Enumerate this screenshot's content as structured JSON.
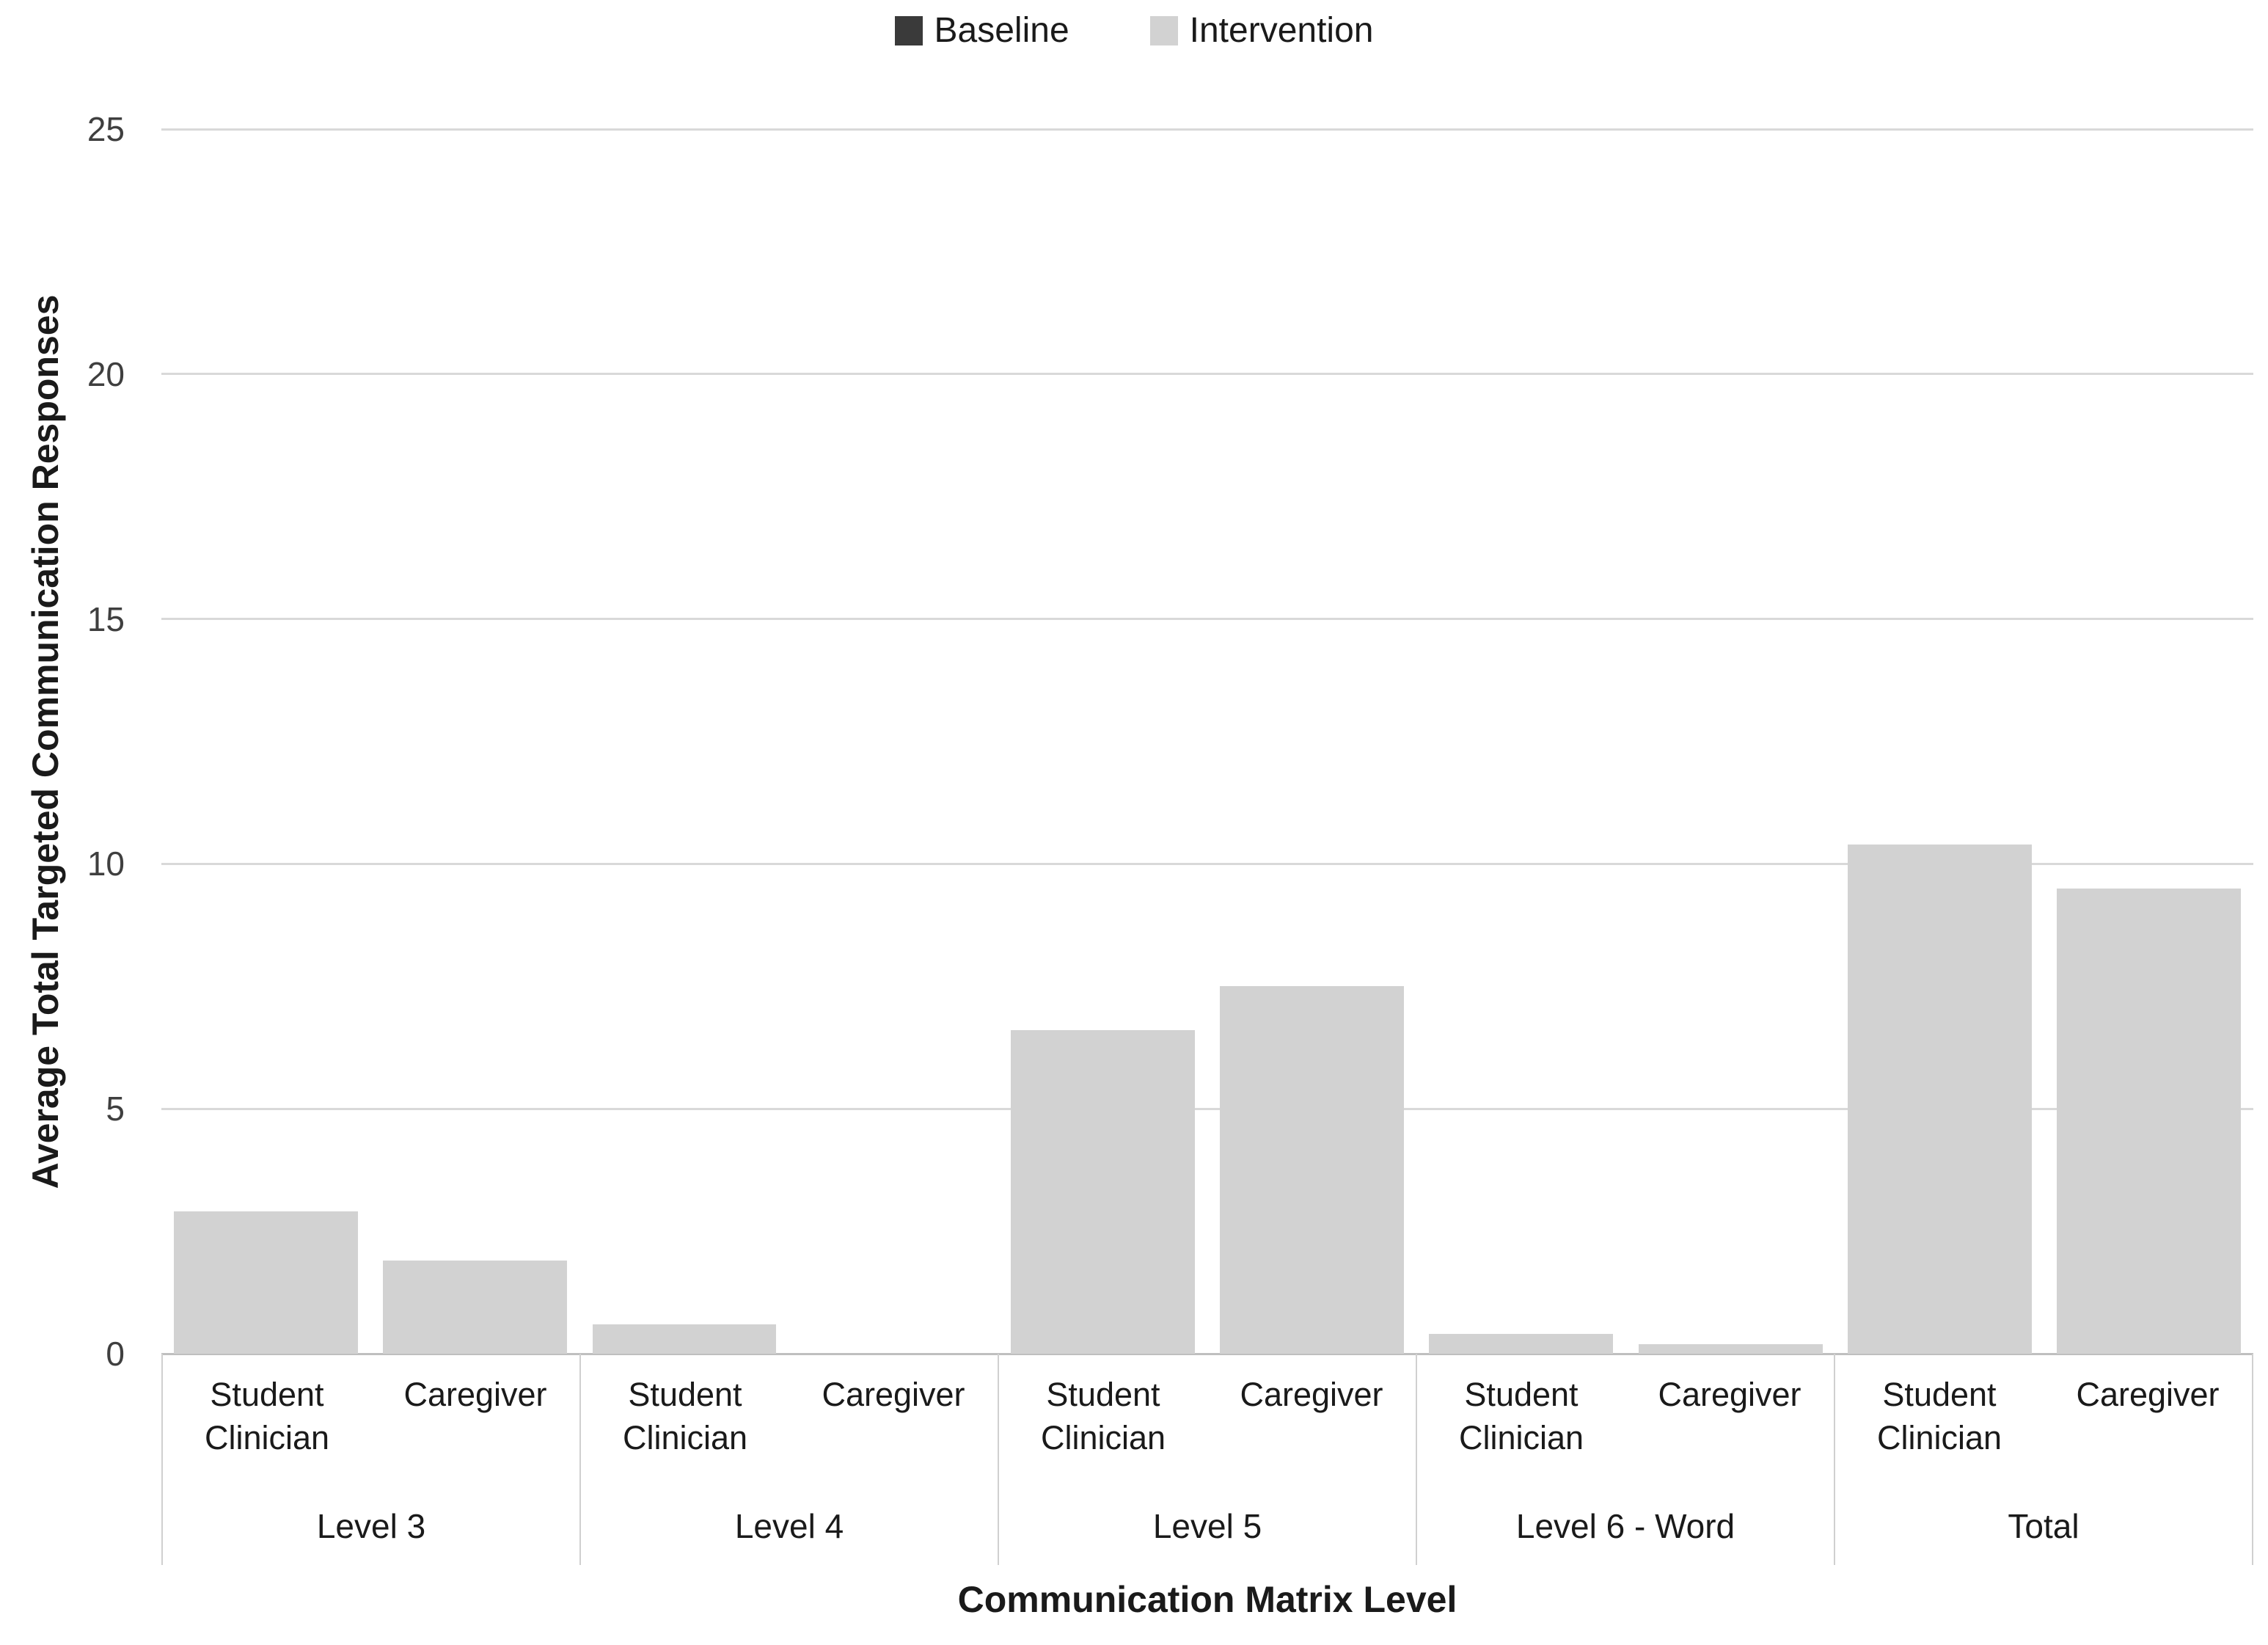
{
  "chart_data": {
    "type": "bar",
    "title": "",
    "xlabel": "Communication Matrix Level",
    "ylabel": "Average Total Targeted Communication Responses",
    "ylim": [
      0,
      25
    ],
    "yticks": [
      0,
      5,
      10,
      15,
      20,
      25
    ],
    "grid": "horizontal",
    "legend_position": "top-center",
    "group_labels": [
      "Level 3",
      "Level 4",
      "Level 5",
      "Level 6 - Word",
      "Total"
    ],
    "categories": [
      "Student Clinician",
      "Caregiver",
      "Student Clinician",
      "Caregiver",
      "Student Clinician",
      "Caregiver",
      "Student Clinician",
      "Caregiver",
      "Student Clinician",
      "Caregiver"
    ],
    "series": [
      {
        "name": "Baseline",
        "color": "#3a3a3a",
        "values": [
          0,
          0,
          0,
          0,
          0,
          0,
          0,
          0,
          0,
          0
        ]
      },
      {
        "name": "Intervention",
        "color": "#d2d2d2",
        "values": [
          2.9,
          1.9,
          0.6,
          0,
          6.6,
          7.5,
          0.4,
          0.2,
          10.4,
          9.5
        ]
      }
    ]
  },
  "colors": {
    "gridline": "#d9d9d9",
    "axis_line": "#bfbfbf",
    "band_divider": "#d0d0d0",
    "bar_intervention": "#d2d2d2",
    "bar_baseline": "#3a3a3a",
    "text": "#1a1a1a"
  }
}
